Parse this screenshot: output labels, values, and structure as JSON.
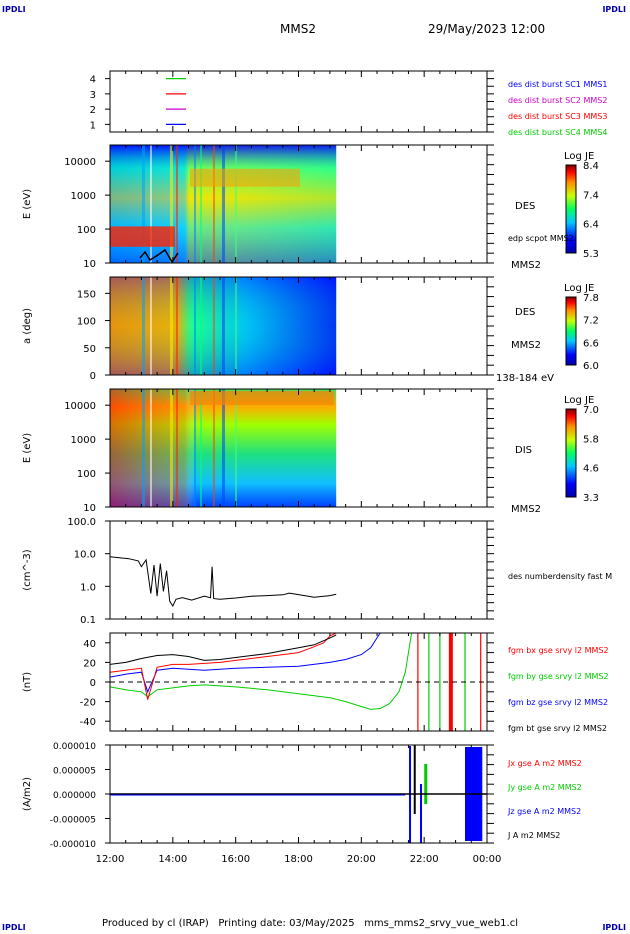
{
  "corners": {
    "tl": "IPDLI",
    "tr": "IPDLI",
    "bl": "IPDLI",
    "br": "IPDLI"
  },
  "header": {
    "spacecraft": "MMS2",
    "datetime": "29/May/2023 12:00"
  },
  "footer": "Produced by cl (IRAP)   Printing date: 03/May/2025   mms_mms2_srvy_vue_web1.cl",
  "colors": {
    "blue": "#0000ff",
    "green": "#00cc00",
    "red": "#ff0000",
    "magenta": "#cc00cc",
    "black": "#000000"
  },
  "chart_data": [
    {
      "type": "line",
      "panel": "burst",
      "yticks": [
        "1",
        "2",
        "3",
        "4"
      ],
      "ylim": [
        0.5,
        4.5
      ],
      "legend": [
        {
          "label": "des dist burst SC1 MMS1",
          "color": "#0000ff"
        },
        {
          "label": "des dist burst SC2 MMS2",
          "color": "#cc00cc"
        },
        {
          "label": "des dist burst SC3 MMS3",
          "color": "#ff0000"
        },
        {
          "label": "des dist burst SC4 MMS4",
          "color": "#00cc00"
        }
      ],
      "marks": [
        {
          "y": 4,
          "color": "#00cc00"
        },
        {
          "y": 3,
          "color": "#ff0000"
        },
        {
          "y": 2,
          "color": "#cc00cc"
        },
        {
          "y": 1,
          "color": "#0000ff"
        }
      ]
    },
    {
      "type": "heatmap",
      "panel": "des-energy",
      "ylabel": "E (eV)",
      "yscale": "log",
      "ylim": [
        10,
        30000
      ],
      "yticks": [
        "10",
        "100",
        "1000",
        "10000"
      ],
      "right_labels": [
        "DES",
        "MMS2"
      ],
      "overlay_label": "edp scpot MMS2",
      "colorbar": {
        "title": "Log JE",
        "ticks": [
          "8.4",
          "7.4",
          "6.4",
          "5.3"
        ]
      }
    },
    {
      "type": "heatmap",
      "panel": "des-pitch",
      "ylabel": "a (deg)",
      "ylim": [
        0,
        180
      ],
      "yticks": [
        "0",
        "50",
        "100",
        "150"
      ],
      "right_labels": [
        "DES",
        "MMS2",
        "138-184 eV"
      ],
      "colorbar": {
        "title": "Log JE",
        "ticks": [
          "7.8",
          "7.2",
          "6.6",
          "6.0"
        ]
      }
    },
    {
      "type": "heatmap",
      "panel": "dis-energy",
      "ylabel": "E (eV)",
      "yscale": "log",
      "ylim": [
        10,
        30000
      ],
      "yticks": [
        "10",
        "100",
        "1000",
        "10000"
      ],
      "right_labels": [
        "DIS",
        "MMS2"
      ],
      "colorbar": {
        "title": "Log JE",
        "ticks": [
          "7.0",
          "5.8",
          "4.6",
          "3.3"
        ]
      }
    },
    {
      "type": "line",
      "panel": "density",
      "ylabel": "(cm^-3)",
      "yscale": "log",
      "ylim": [
        0.1,
        100
      ],
      "yticks": [
        "0.1",
        "1.0",
        "10.0",
        "100.0"
      ],
      "series": [
        {
          "name": "des numberdensity fast M",
          "color": "#000000",
          "x": [
            12.0,
            12.3,
            12.6,
            12.9,
            13.0,
            13.15,
            13.3,
            13.4,
            13.5,
            13.6,
            13.7,
            13.8,
            13.9,
            14.0,
            14.1,
            14.3,
            14.6,
            15.0,
            15.2,
            15.25,
            15.3,
            15.5,
            16.0,
            16.5,
            17.0,
            17.5,
            17.7,
            18.0,
            18.5,
            19.0,
            19.2
          ],
          "y": [
            8.0,
            7.5,
            7.0,
            6.0,
            4.0,
            6.5,
            0.6,
            4.5,
            0.5,
            5.0,
            0.7,
            3.0,
            0.35,
            0.25,
            0.4,
            0.45,
            0.38,
            0.5,
            0.45,
            4.0,
            0.42,
            0.4,
            0.44,
            0.5,
            0.52,
            0.55,
            0.62,
            0.56,
            0.46,
            0.52,
            0.57
          ]
        }
      ]
    },
    {
      "type": "line",
      "panel": "magnetic-field",
      "ylabel": "(nT)",
      "ylim": [
        -50,
        50
      ],
      "yticks": [
        "-40",
        "-20",
        "0",
        "20",
        "40"
      ],
      "series": [
        {
          "name": "fgm bx gse srvy l2 MMS2",
          "color": "#ff0000",
          "x": [
            12.0,
            12.5,
            13.0,
            13.2,
            13.5,
            14.0,
            14.5,
            15.0,
            15.5,
            16.0,
            16.5,
            17.0,
            17.5,
            18.0,
            18.5,
            18.8,
            19.0,
            19.2
          ],
          "y": [
            10,
            12,
            14,
            -18,
            15,
            18,
            18,
            19,
            20,
            22,
            24,
            26,
            28,
            30,
            36,
            40,
            47,
            50
          ]
        },
        {
          "name": "fgm by gse srvy l2 MMS2",
          "color": "#00cc00",
          "x": [
            12.0,
            12.5,
            13.0,
            13.2,
            13.5,
            14.0,
            14.5,
            15.0,
            16.0,
            17.0,
            18.0,
            19.0,
            19.5,
            20.0,
            20.3,
            20.6,
            20.9,
            21.2,
            21.4,
            21.6
          ],
          "y": [
            -5,
            -8,
            -10,
            -15,
            -8,
            -6,
            -4,
            -3,
            -5,
            -8,
            -12,
            -16,
            -20,
            -25,
            -28,
            -27,
            -22,
            -10,
            10,
            50
          ]
        },
        {
          "name": "fgm bz gse srvy l2 MMS2",
          "color": "#0000ff",
          "x": [
            12.0,
            12.5,
            13.0,
            13.2,
            13.5,
            14.0,
            15.0,
            16.0,
            17.0,
            18.0,
            19.0,
            19.5,
            20.0,
            20.3,
            20.5,
            20.6
          ],
          "y": [
            5,
            8,
            10,
            -10,
            12,
            14,
            12,
            14,
            15,
            16,
            20,
            23,
            28,
            35,
            45,
            50
          ]
        },
        {
          "name": "fgm bt gse srvy l2 MMS2",
          "color": "#000000",
          "x": [
            12.0,
            12.5,
            13.0,
            13.5,
            14.0,
            14.5,
            15.0,
            15.5,
            16.0,
            16.5,
            17.0,
            17.5,
            18.0,
            18.5,
            19.0,
            19.2
          ],
          "y": [
            18,
            20,
            24,
            27,
            28,
            26,
            22,
            23,
            25,
            27,
            29,
            32,
            35,
            38,
            45,
            48
          ]
        }
      ],
      "spikes": [
        {
          "x": 21.8,
          "color": "#ff0000"
        },
        {
          "x": 22.15,
          "color": "#00cc00"
        },
        {
          "x": 22.5,
          "color": "#00cc00"
        },
        {
          "x": 22.85,
          "color": "#ff0000",
          "bold": true
        },
        {
          "x": 23.3,
          "color": "#00cc00"
        },
        {
          "x": 23.8,
          "color": "#ff0000"
        }
      ]
    },
    {
      "type": "line",
      "panel": "current-density",
      "ylabel": "(A/m2)",
      "ylim": [
        -1e-05,
        1e-05
      ],
      "yticks": [
        "-0.000010",
        "-0.000005",
        "0.000000",
        "0.000005",
        "0.000010"
      ],
      "series": [
        {
          "name": "Jx gse A m2 MMS2",
          "color": "#ff0000"
        },
        {
          "name": "Jy gse A m2 MMS2",
          "color": "#00cc00"
        },
        {
          "name": "Jz gse A m2 MMS2",
          "color": "#0000ff"
        },
        {
          "name": "J A m2 MMS2",
          "color": "#000000"
        }
      ]
    }
  ],
  "time_axis": {
    "ticks": [
      "12:00",
      "14:00",
      "16:00",
      "18:00",
      "20:00",
      "22:00",
      "00:00"
    ],
    "range_hours": [
      12,
      24
    ]
  }
}
